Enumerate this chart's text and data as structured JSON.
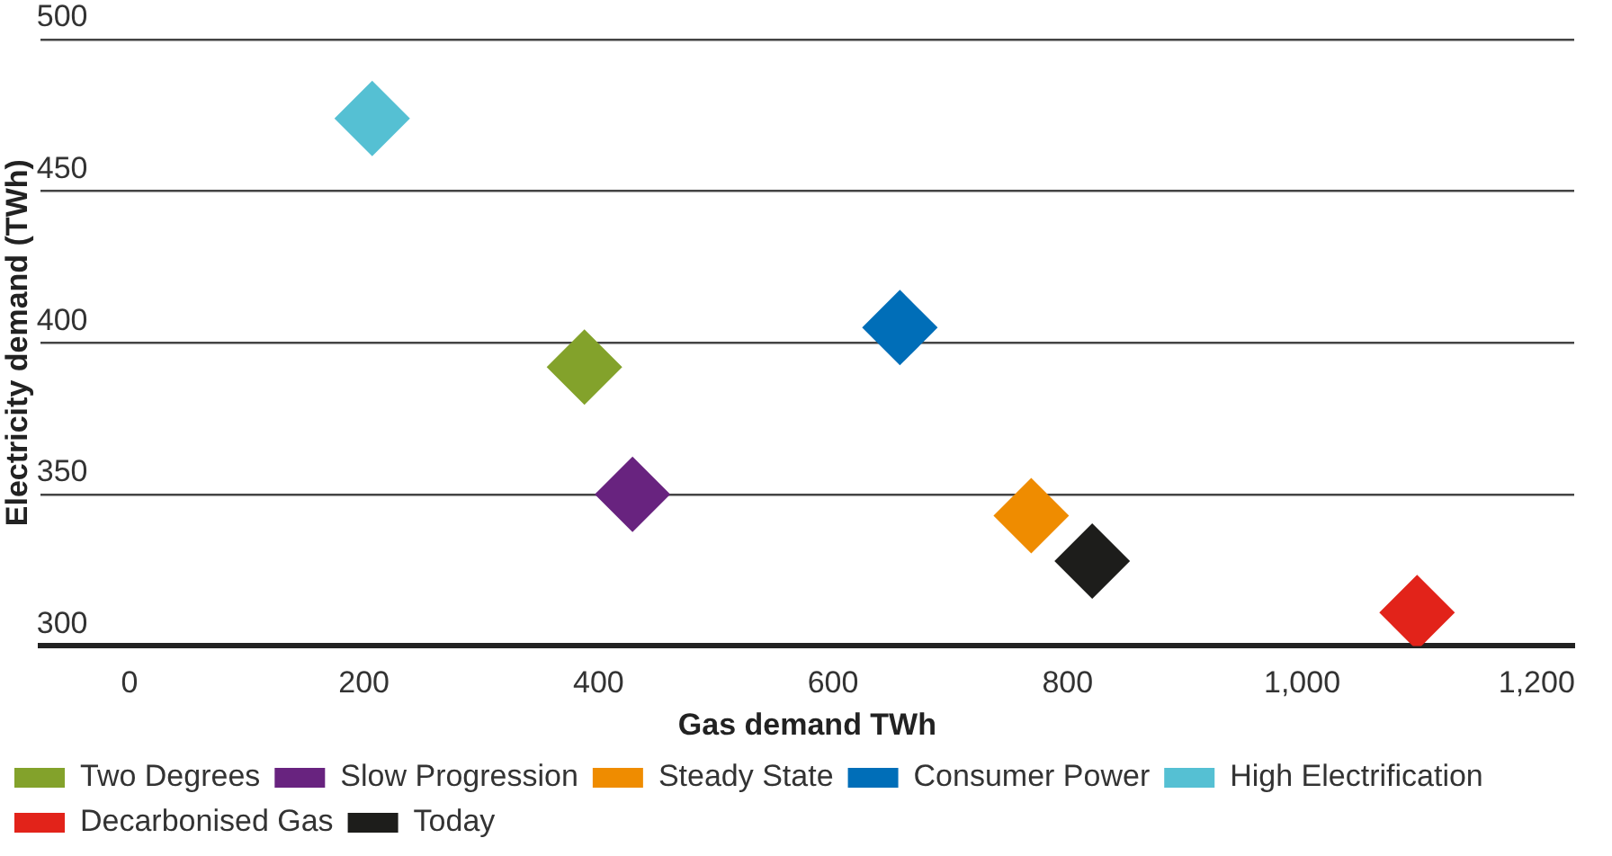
{
  "chart_data": {
    "type": "scatter",
    "xlabel": "Gas demand TWh",
    "ylabel": "Electricity demand (TWh)",
    "xlim": [
      -76,
      1232
    ],
    "xticks": [
      0,
      200,
      400,
      600,
      800,
      {
        "value": 1000,
        "label": "1,000"
      },
      {
        "value": 1200,
        "label": "1,200"
      }
    ],
    "ylim": [
      300,
      500
    ],
    "yticks": [
      300,
      350,
      400,
      450,
      500
    ],
    "grid": "y",
    "legend": "bottom",
    "marker": "diamond",
    "series": [
      {
        "name": "Two Degrees",
        "color": "#83a22b",
        "x": [
          388
        ],
        "values": [
          392
        ]
      },
      {
        "name": "Slow Progression",
        "color": "#68237f",
        "x": [
          429
        ],
        "values": [
          350
        ]
      },
      {
        "name": "Steady State",
        "color": "#ef8c00",
        "x": [
          769
        ],
        "values": [
          343
        ]
      },
      {
        "name": "Consumer Power",
        "color": "#006eb8",
        "x": [
          657
        ],
        "values": [
          405
        ]
      },
      {
        "name": "High Electrification",
        "color": "#55c0d3",
        "x": [
          207
        ],
        "values": [
          474
        ]
      },
      {
        "name": "Decarbonised Gas",
        "color": "#e2231a",
        "x": [
          1098
        ],
        "values": [
          311
        ]
      },
      {
        "name": "Today",
        "color": "#1d1d1b",
        "x": [
          821
        ],
        "values": [
          328
        ]
      }
    ]
  }
}
